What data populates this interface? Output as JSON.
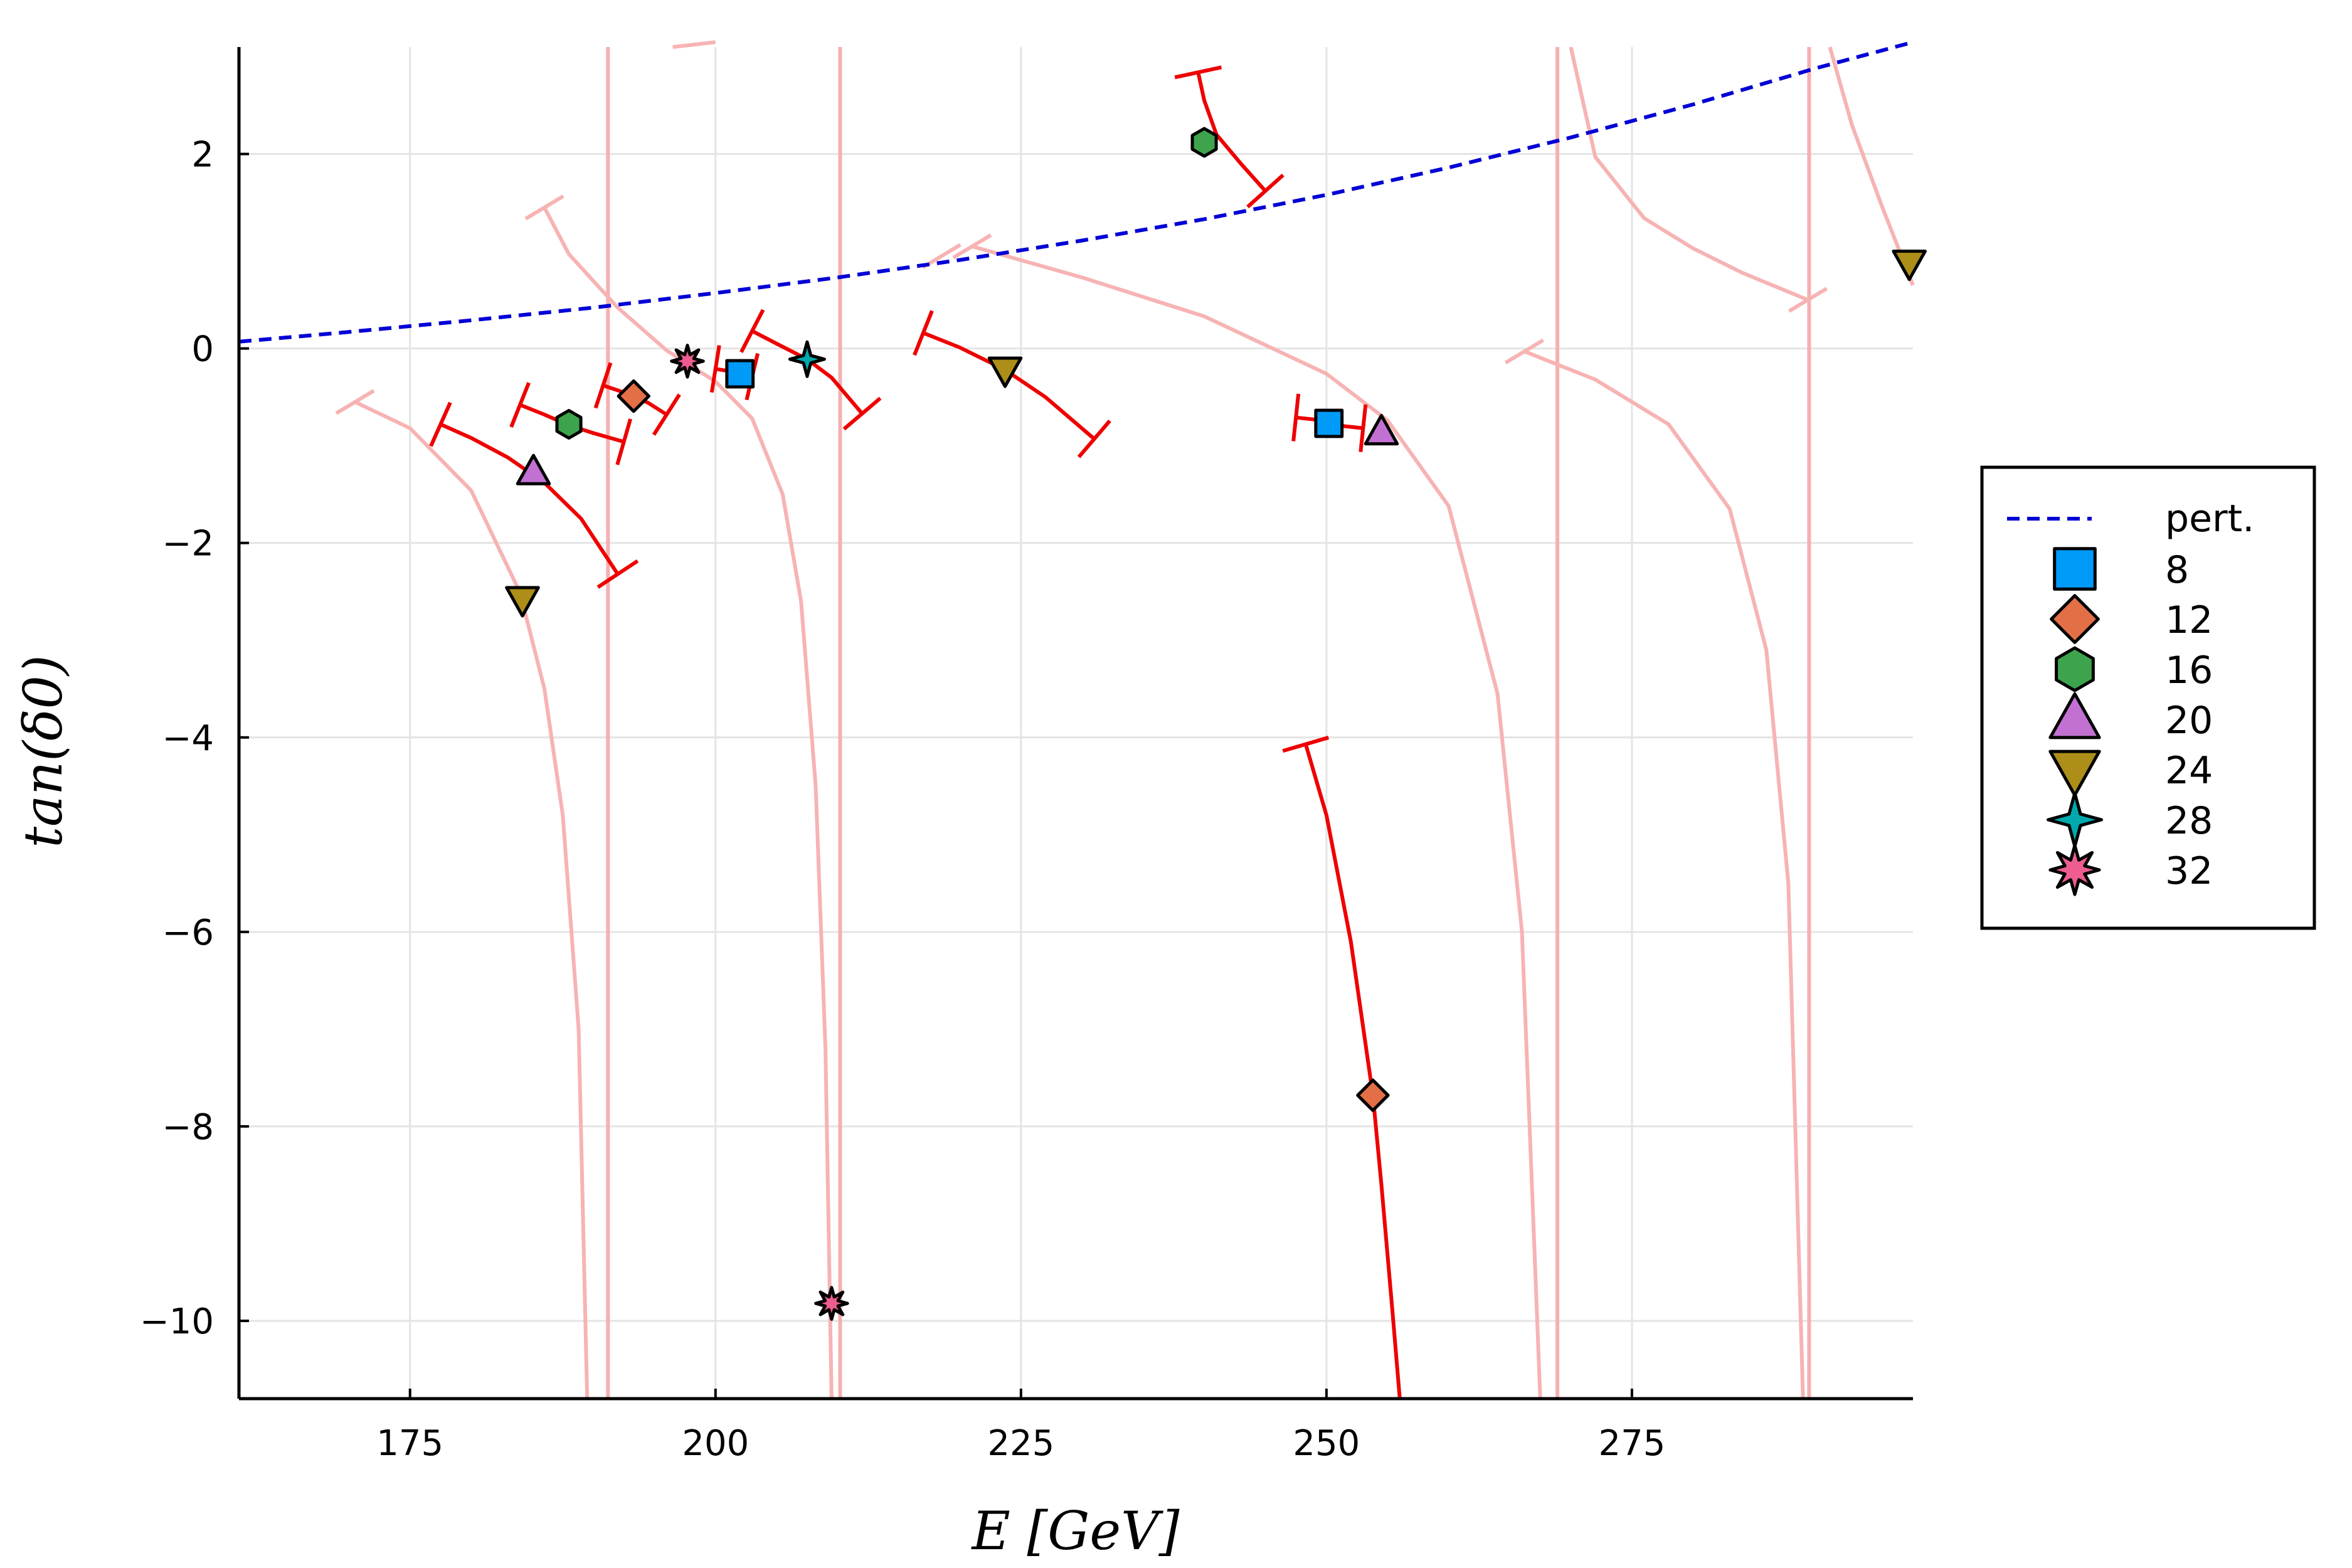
{
  "chart_data": {
    "type": "scatter",
    "xlabel": "E  [GeV]",
    "ylabel": "tan(δ0)",
    "xlim": [
      161,
      298
    ],
    "ylim": [
      -10.8,
      3.1
    ],
    "xticks": [
      175,
      200,
      225,
      250,
      275
    ],
    "yticks": [
      2,
      0,
      -2,
      -4,
      -6,
      -8,
      -10
    ],
    "xtick_labels": [
      "175",
      "200",
      "225",
      "250",
      "275"
    ],
    "ytick_labels": [
      "2",
      "0",
      "−2",
      "−4",
      "−6",
      "−8",
      "−10"
    ],
    "grid": true,
    "legend_position": "outer right",
    "perturbative": {
      "name": "pert.",
      "color": "#0000d6",
      "x": [
        161,
        170,
        180,
        190,
        200,
        210,
        220,
        230,
        240,
        250,
        260,
        270,
        280,
        290,
        298
      ],
      "y": [
        0.07,
        0.17,
        0.29,
        0.42,
        0.57,
        0.73,
        0.91,
        1.11,
        1.33,
        1.58,
        1.86,
        2.17,
        2.51,
        2.88,
        3.15
      ]
    },
    "series": [
      {
        "name": "8",
        "marker": "square",
        "color": "#009af9",
        "x": [
          202,
          250.2
        ],
        "y": [
          -0.26,
          -0.77
        ]
      },
      {
        "name": "12",
        "marker": "diamond",
        "color": "#e26f46",
        "x": [
          193.3,
          253.8
        ],
        "y": [
          -0.49,
          -7.68
        ]
      },
      {
        "name": "16",
        "marker": "hexagon",
        "color": "#3da44d",
        "x": [
          188,
          240
        ],
        "y": [
          -0.78,
          2.12
        ]
      },
      {
        "name": "20",
        "marker": "triangle-up",
        "color": "#c271d2",
        "x": [
          185.1,
          254.5
        ],
        "y": [
          -1.27,
          -0.86
        ]
      },
      {
        "name": "24",
        "marker": "triangle-down",
        "color": "#ac8e18",
        "x": [
          184.2,
          223.7,
          297.7
        ],
        "y": [
          -2.58,
          -0.22,
          0.88
        ]
      },
      {
        "name": "28",
        "marker": "star4",
        "color": "#00a9ad",
        "x": [
          207.5
        ],
        "y": [
          -0.11
        ]
      },
      {
        "name": "32",
        "marker": "star8",
        "color": "#ed5d92",
        "x": [
          197.7,
          209.5
        ],
        "y": [
          -0.13,
          -9.82
        ]
      }
    ],
    "error_bands": [
      {
        "x": [
          177.5,
          180,
          183,
          186,
          189,
          192
        ],
        "y": [
          -0.78,
          -0.92,
          -1.12,
          -1.38,
          -1.75,
          -2.32
        ]
      },
      {
        "x": [
          184,
          186,
          188,
          190,
          192.5
        ],
        "y": [
          -0.58,
          -0.68,
          -0.79,
          -0.87,
          -0.96
        ]
      },
      {
        "x": [
          190.8,
          192,
          193.3,
          194.5,
          196
        ],
        "y": [
          -0.38,
          -0.43,
          -0.49,
          -0.56,
          -0.68
        ]
      },
      {
        "x": [
          200,
          201,
          202,
          203
        ],
        "y": [
          -0.21,
          -0.23,
          -0.26,
          -0.29
        ]
      },
      {
        "x": [
          203,
          205,
          207.5,
          209.5,
          212
        ],
        "y": [
          0.18,
          0.05,
          -0.11,
          -0.3,
          -0.67
        ]
      },
      {
        "x": [
          217,
          220,
          223.7,
          227,
          231
        ],
        "y": [
          0.16,
          0.01,
          -0.22,
          -0.5,
          -0.93
        ]
      },
      {
        "x": [
          239.5,
          240,
          241,
          243,
          245
        ],
        "y": [
          2.84,
          2.55,
          2.2,
          1.9,
          1.62
        ]
      },
      {
        "x": [
          247.5,
          249,
          250.2,
          251.5,
          253
        ],
        "y": [
          -0.71,
          -0.73,
          -0.77,
          -0.8,
          -0.82
        ]
      },
      {
        "x": [
          248.3,
          250,
          252,
          253.8,
          254.5,
          255.4,
          256
        ],
        "y": [
          -4.07,
          -4.8,
          -6.1,
          -7.68,
          -8.6,
          -9.9,
          -10.8
        ]
      }
    ],
    "branches": [
      {
        "x": [
          170.5,
          175,
          180,
          184,
          186,
          187.5,
          188.8,
          189.5
        ],
        "y": [
          -0.55,
          -0.82,
          -1.46,
          -2.51,
          -3.5,
          -4.8,
          -7.0,
          -10.8
        ]
      },
      {
        "x": [
          186,
          188,
          192,
          196,
          200,
          203,
          205.5,
          207,
          208.2,
          209,
          209.5
        ],
        "y": [
          1.45,
          0.97,
          0.42,
          -0.02,
          -0.34,
          -0.72,
          -1.5,
          -2.6,
          -4.5,
          -7.2,
          -10.8
        ]
      },
      {
        "x": [
          196.5,
          200
        ],
        "y": [
          3.1,
          3.15
        ]
      },
      {
        "x": [
          221,
          230,
          240,
          250,
          255,
          260,
          264,
          266,
          267.5
        ],
        "y": [
          1.05,
          0.73,
          0.33,
          -0.26,
          -0.74,
          -1.62,
          -3.55,
          -6.0,
          -10.8
        ]
      },
      {
        "x": [
          266.2,
          272,
          278,
          283,
          286,
          287.8,
          289
        ],
        "y": [
          -0.03,
          -0.32,
          -0.78,
          -1.65,
          -3.1,
          -5.5,
          -10.8
        ]
      },
      {
        "x": [
          270,
          272,
          276,
          280,
          284,
          289.4
        ],
        "y": [
          3.1,
          1.97,
          1.34,
          1.03,
          0.78,
          0.5
        ]
      },
      {
        "x": [
          291.2,
          293,
          295.5,
          298
        ],
        "y": [
          3.1,
          2.3,
          1.45,
          0.65
        ]
      }
    ],
    "asymptotes_x": [
      191.2,
      210.2,
      268.9,
      289.5
    ],
    "faint_caps_x": [
      170.5,
      186,
      218.5,
      221,
      266.2,
      289.4
    ],
    "faint_caps_y": [
      -0.55,
      1.45,
      0.95,
      1.05,
      -0.03,
      0.5
    ]
  }
}
